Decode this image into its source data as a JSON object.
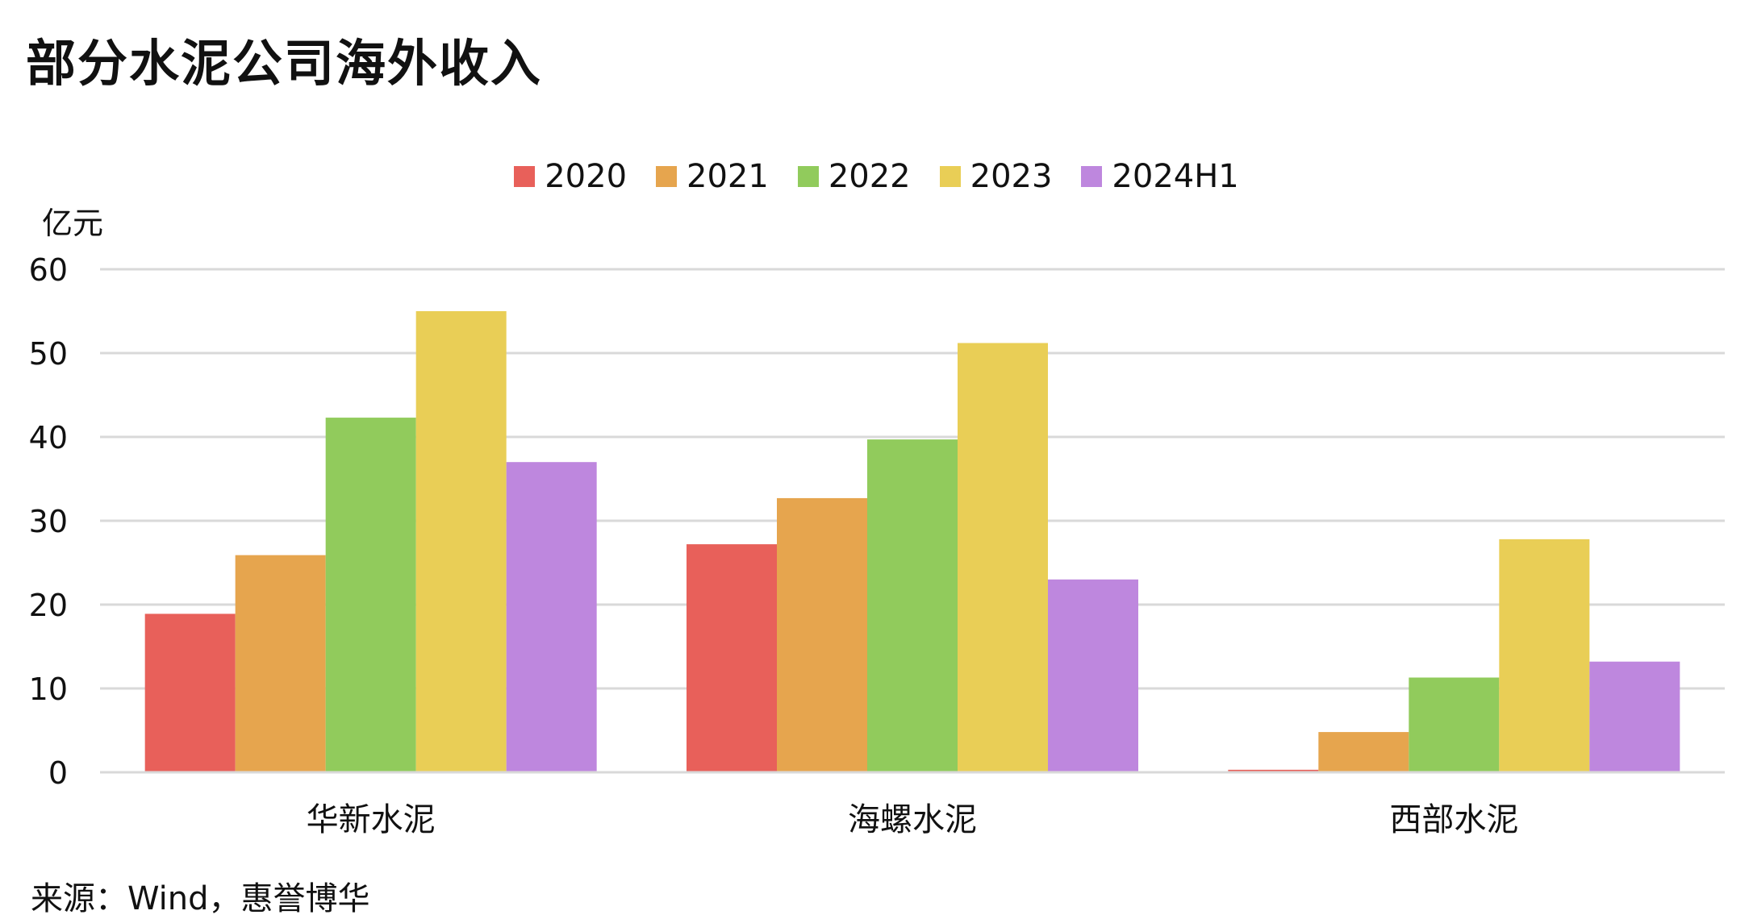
{
  "title": "部分水泥公司海外收入",
  "source": "来源：Wind，惠誉博华",
  "chart_data": {
    "type": "bar",
    "title": "部分水泥公司海外收入",
    "ylabel": "亿元",
    "xlabel": "",
    "ylim": [
      0,
      60
    ],
    "yticks": [
      0,
      10,
      20,
      30,
      40,
      50,
      60
    ],
    "grid": true,
    "legend_position": "top",
    "categories": [
      "华新水泥",
      "海螺水泥",
      "西部水泥"
    ],
    "series": [
      {
        "name": "2020",
        "color": "#E8605A",
        "values": [
          18.9,
          27.2,
          0.3
        ]
      },
      {
        "name": "2021",
        "color": "#E6A54E",
        "values": [
          25.9,
          32.7,
          4.8
        ]
      },
      {
        "name": "2022",
        "color": "#91CB5C",
        "values": [
          42.3,
          39.7,
          11.3
        ]
      },
      {
        "name": "2023",
        "color": "#E9CE56",
        "values": [
          55.0,
          51.2,
          27.8
        ]
      },
      {
        "name": "2024H1",
        "color": "#BE87DE",
        "values": [
          37.0,
          23.0,
          13.2
        ]
      }
    ]
  }
}
